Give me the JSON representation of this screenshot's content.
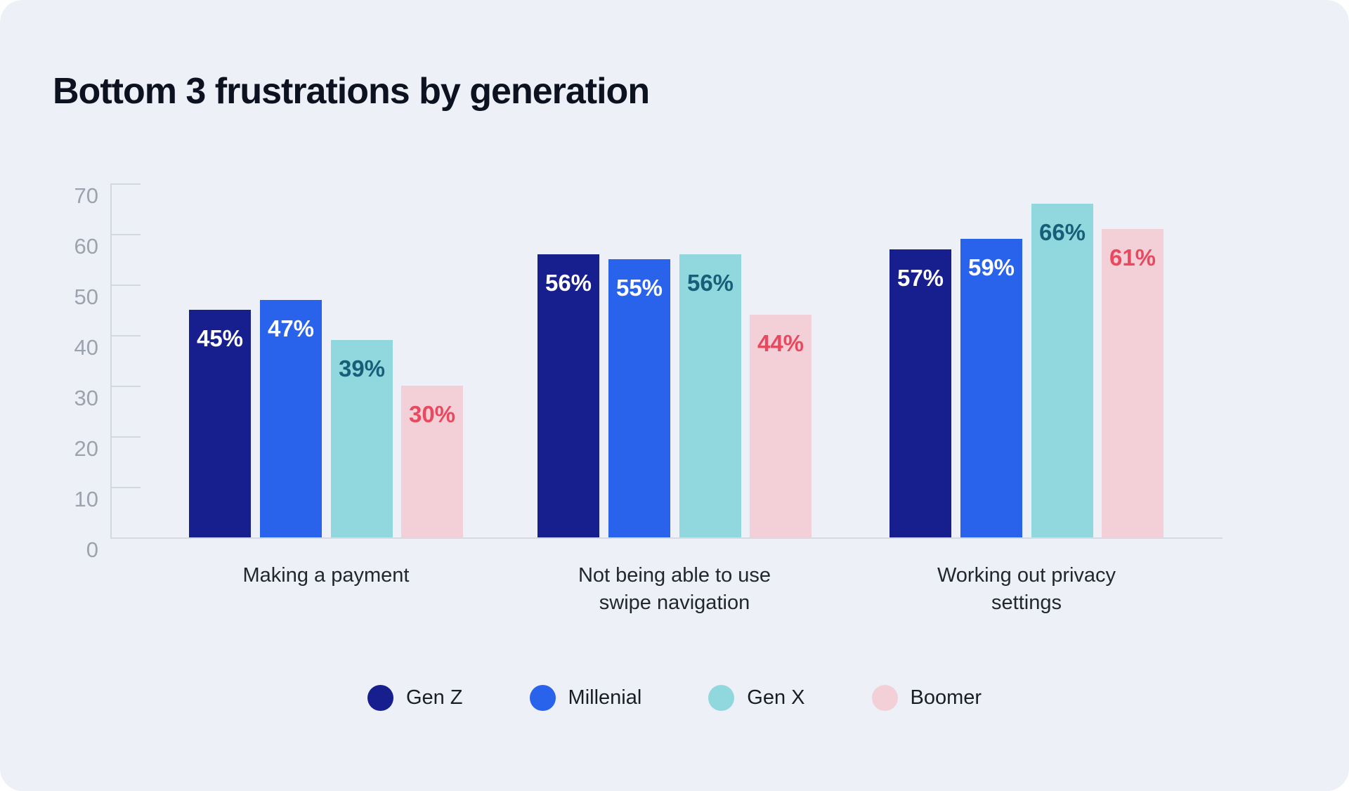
{
  "title": "Bottom 3 frustrations by generation",
  "chart_data": {
    "type": "bar",
    "title": "Bottom 3 frustrations by generation",
    "categories": [
      "Making a payment",
      "Not being able to use swipe navigation",
      "Working out privacy settings"
    ],
    "series": [
      {
        "name": "Gen Z",
        "values": [
          45,
          56,
          57
        ],
        "color": "#171e8e",
        "label_color": "#ffffff"
      },
      {
        "name": "Millenial",
        "values": [
          47,
          55,
          59
        ],
        "color": "#2962eb",
        "label_color": "#ffffff"
      },
      {
        "name": "Gen X",
        "values": [
          39,
          56,
          66
        ],
        "color": "#90d8dd",
        "label_color": "#175e78"
      },
      {
        "name": "Boomer",
        "values": [
          30,
          44,
          61
        ],
        "color": "#f3cfd7",
        "label_color": "#e9495e"
      }
    ],
    "value_suffix": "%",
    "xlabel": "",
    "ylabel": "",
    "ylim": [
      0,
      70
    ],
    "yticks": [
      0,
      10,
      20,
      30,
      40,
      50,
      60,
      70
    ],
    "grid": false,
    "legend_position": "bottom"
  },
  "colors": {
    "card_bg": "#edf1f7",
    "page_bg": "#ffffff",
    "title_text": "#0d1220",
    "axis_line": "#d2d8e1",
    "tick_label": "#9ca3ae",
    "category_label": "#22262f",
    "legend_label": "#191d26"
  }
}
